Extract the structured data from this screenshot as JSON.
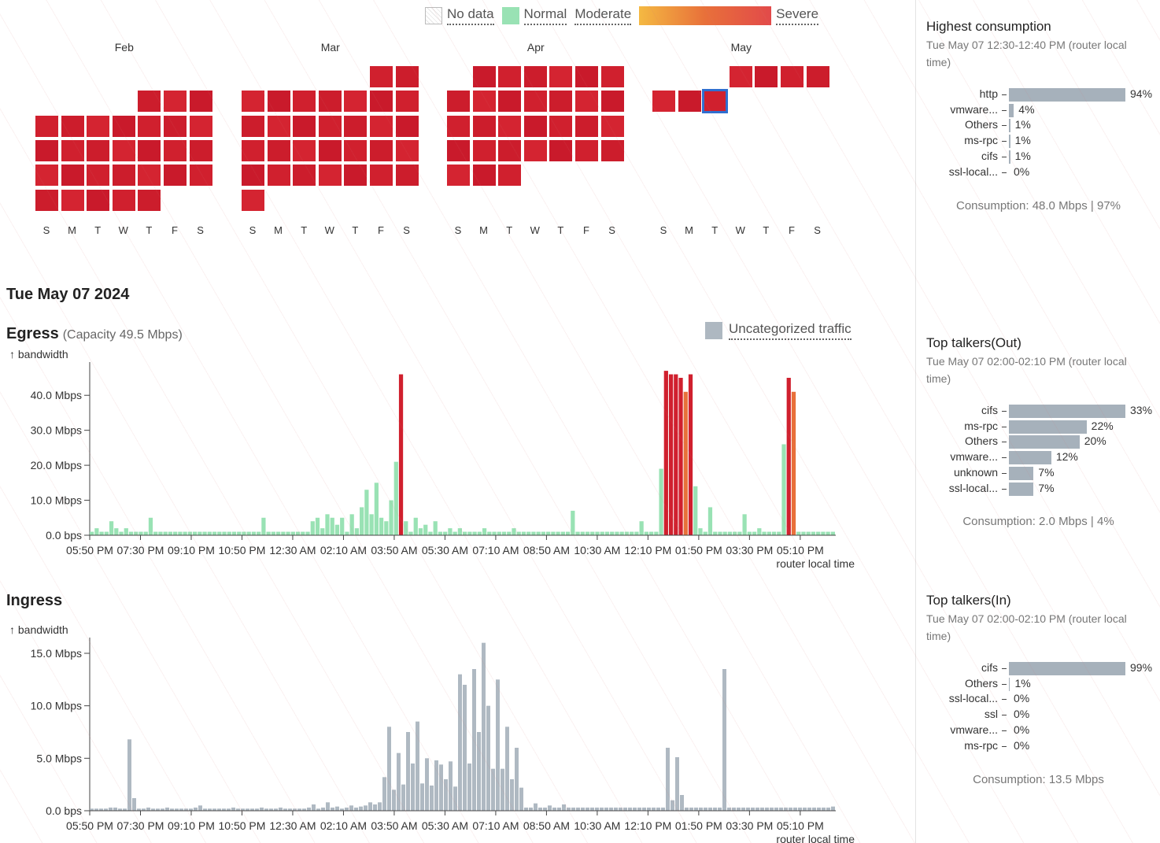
{
  "legend": {
    "no_data": "No data",
    "normal": "Normal",
    "moderate": "Moderate",
    "severe": "Severe",
    "colors": {
      "normal": "#99e2b4",
      "moderate": "#f4b942",
      "severe": "#e24a4a"
    }
  },
  "calendar": {
    "months": [
      {
        "label": "Feb",
        "dow": [
          "S",
          "M",
          "T",
          "W",
          "T",
          "F",
          "S"
        ]
      },
      {
        "label": "Mar",
        "dow": [
          "S",
          "M",
          "T",
          "W",
          "T",
          "F",
          "S"
        ]
      },
      {
        "label": "Apr",
        "dow": [
          "S",
          "M",
          "T",
          "W",
          "T",
          "F",
          "S"
        ]
      },
      {
        "label": "May",
        "dow": [
          "S",
          "M",
          "T",
          "W",
          "T",
          "F",
          "S"
        ]
      }
    ],
    "cell_color": "#d0202e",
    "selected_color": "#2f6fd0"
  },
  "selected_date": "Tue May 07 2024",
  "egress": {
    "title": "Egress",
    "subtitle": "(Capacity 49.5 Mbps)",
    "ylabel": "↑ bandwidth",
    "legend_label": "Uncategorized traffic"
  },
  "ingress": {
    "title": "Ingress",
    "ylabel": "↑ bandwidth"
  },
  "chart_data": [
    {
      "type": "bar",
      "name": "egress",
      "xlabel": "router local time",
      "ylim": [
        0,
        49.5
      ],
      "yticks": [
        "0.0 bps",
        "10.0 Mbps",
        "20.0 Mbps",
        "30.0 Mbps",
        "40.0 Mbps"
      ],
      "ytick_values": [
        0,
        10,
        20,
        30,
        40
      ],
      "xticks": [
        "05:50 PM",
        "07:30 PM",
        "09:10 PM",
        "10:50 PM",
        "12:30 AM",
        "02:10 AM",
        "03:50 AM",
        "05:30 AM",
        "07:10 AM",
        "08:50 AM",
        "10:30 AM",
        "12:10 PM",
        "01:50 PM",
        "03:30 PM",
        "05:10 PM"
      ],
      "values": [
        1,
        2,
        1,
        1,
        4,
        2,
        1,
        2,
        1,
        1,
        1,
        1,
        5,
        1,
        1,
        1,
        1,
        1,
        1,
        1,
        1,
        1,
        1,
        1,
        1,
        1,
        1,
        1,
        1,
        1,
        1,
        1,
        1,
        1,
        1,
        5,
        1,
        1,
        1,
        1,
        1,
        1,
        1,
        1,
        1,
        4,
        5,
        2,
        6,
        5,
        3,
        5,
        1,
        6,
        2,
        8,
        13,
        6,
        15,
        5,
        4,
        10,
        21,
        46,
        4,
        1,
        5,
        2,
        3,
        1,
        4,
        1,
        1,
        2,
        1,
        2,
        1,
        1,
        1,
        1,
        2,
        1,
        1,
        1,
        1,
        1,
        2,
        1,
        1,
        1,
        1,
        1,
        1,
        1,
        1,
        1,
        1,
        1,
        7,
        1,
        1,
        1,
        1,
        1,
        1,
        1,
        1,
        1,
        1,
        1,
        1,
        1,
        4,
        1,
        1,
        1,
        19,
        47,
        46,
        46,
        45,
        41,
        46,
        14,
        2,
        1,
        8,
        1,
        1,
        1,
        1,
        1,
        1,
        6,
        1,
        1,
        2,
        1,
        1,
        1,
        1,
        26,
        45,
        41,
        1,
        1,
        1,
        1,
        1,
        1,
        1,
        1
      ],
      "severity": [
        0,
        0,
        0,
        0,
        0,
        0,
        0,
        0,
        0,
        0,
        0,
        0,
        0,
        0,
        0,
        0,
        0,
        0,
        0,
        0,
        0,
        0,
        0,
        0,
        0,
        0,
        0,
        0,
        0,
        0,
        0,
        0,
        0,
        0,
        0,
        0,
        0,
        0,
        0,
        0,
        0,
        0,
        0,
        0,
        0,
        0,
        0,
        0,
        0,
        0,
        0,
        0,
        0,
        0,
        0,
        0,
        0,
        0,
        0,
        0,
        0,
        0,
        0,
        2,
        0,
        0,
        0,
        0,
        0,
        0,
        0,
        0,
        0,
        0,
        0,
        0,
        0,
        0,
        0,
        0,
        0,
        0,
        0,
        0,
        0,
        0,
        0,
        0,
        0,
        0,
        0,
        0,
        0,
        0,
        0,
        0,
        0,
        0,
        0,
        0,
        0,
        0,
        0,
        0,
        0,
        0,
        0,
        0,
        0,
        0,
        0,
        0,
        0,
        0,
        0,
        0,
        0,
        2,
        2,
        2,
        2,
        1,
        2,
        0,
        0,
        0,
        0,
        0,
        0,
        0,
        0,
        0,
        0,
        0,
        0,
        0,
        0,
        0,
        0,
        0,
        0,
        0,
        2,
        1,
        0,
        0,
        0,
        0,
        0,
        0,
        0,
        0
      ]
    },
    {
      "type": "bar",
      "name": "ingress",
      "xlabel": "router local time",
      "ylim": [
        0,
        16.5
      ],
      "yticks": [
        "0.0 bps",
        "5.0 Mbps",
        "10.0 Mbps",
        "15.0 Mbps"
      ],
      "ytick_values": [
        0,
        5,
        10,
        15
      ],
      "xticks": [
        "05:50 PM",
        "07:30 PM",
        "09:10 PM",
        "10:50 PM",
        "12:30 AM",
        "02:10 AM",
        "03:50 AM",
        "05:30 AM",
        "07:10 AM",
        "08:50 AM",
        "10:30 AM",
        "12:10 PM",
        "01:50 PM",
        "03:30 PM",
        "05:10 PM"
      ],
      "values": [
        0.2,
        0.2,
        0.2,
        0.2,
        0.3,
        0.3,
        0.2,
        0.2,
        6.8,
        1.2,
        0.2,
        0.2,
        0.3,
        0.2,
        0.2,
        0.2,
        0.3,
        0.2,
        0.2,
        0.2,
        0.2,
        0.2,
        0.3,
        0.5,
        0.2,
        0.2,
        0.2,
        0.2,
        0.2,
        0.2,
        0.3,
        0.2,
        0.2,
        0.2,
        0.2,
        0.2,
        0.3,
        0.2,
        0.2,
        0.2,
        0.3,
        0.2,
        0.2,
        0.2,
        0.2,
        0.2,
        0.3,
        0.6,
        0.2,
        0.3,
        0.8,
        0.3,
        0.4,
        0.2,
        0.3,
        0.5,
        0.3,
        0.4,
        0.5,
        0.8,
        0.6,
        0.8,
        3.2,
        8,
        2,
        5.5,
        2.5,
        7.5,
        4.5,
        8.5,
        2.6,
        5,
        2.4,
        4.8,
        4.4,
        3,
        4.7,
        2.3,
        13,
        12,
        4.5,
        13.5,
        7.5,
        16,
        10,
        4,
        12.5,
        4,
        8,
        3,
        6,
        2.2,
        0.3,
        0.3,
        0.7,
        0.3,
        0.3,
        0.5,
        0.3,
        0.3,
        0.6,
        0.3,
        0.3,
        0.3,
        0.3,
        0.3,
        0.3,
        0.3,
        0.3,
        0.3,
        0.3,
        0.3,
        0.3,
        0.3,
        0.3,
        0.3,
        0.3,
        0.3,
        0.3,
        0.3,
        0.3,
        0.3,
        6,
        1,
        5.1,
        1.5,
        0.3,
        0.3,
        0.3,
        0.3,
        0.3,
        0.3,
        0.3,
        0.3,
        13.5,
        0.3,
        0.3,
        0.3,
        0.3,
        0.3,
        0.3,
        0.3,
        0.3,
        0.3,
        0.3,
        0.3,
        0.3,
        0.3,
        0.3,
        0.3,
        0.3,
        0.3,
        0.3,
        0.3,
        0.3,
        0.3,
        0.3,
        0.4
      ]
    }
  ],
  "panels": [
    {
      "title": "Highest consumption",
      "subtitle": "Tue May 07 12:30-12:40 PM (router local time)",
      "items": [
        {
          "name": "http",
          "pct": 94,
          "label": "94%"
        },
        {
          "name": "vmware...",
          "pct": 4,
          "label": "4%"
        },
        {
          "name": "Others",
          "pct": 1,
          "label": "1%"
        },
        {
          "name": "ms-rpc",
          "pct": 1,
          "label": "1%"
        },
        {
          "name": "cifs",
          "pct": 1,
          "label": "1%"
        },
        {
          "name": "ssl-local...",
          "pct": 0,
          "label": "0%"
        }
      ],
      "consumption": "Consumption: 48.0 Mbps | 97%"
    },
    {
      "title": "Top talkers(Out)",
      "subtitle": "Tue May 07 02:00-02:10 PM (router local time)",
      "items": [
        {
          "name": "cifs",
          "pct": 33,
          "label": "33%"
        },
        {
          "name": "ms-rpc",
          "pct": 22,
          "label": "22%"
        },
        {
          "name": "Others",
          "pct": 20,
          "label": "20%"
        },
        {
          "name": "vmware...",
          "pct": 12,
          "label": "12%"
        },
        {
          "name": "unknown",
          "pct": 7,
          "label": "7%"
        },
        {
          "name": "ssl-local...",
          "pct": 7,
          "label": "7%"
        }
      ],
      "consumption": "Consumption: 2.0 Mbps | 4%"
    },
    {
      "title": "Top talkers(In)",
      "subtitle": "Tue May 07 02:00-02:10 PM (router local time)",
      "items": [
        {
          "name": "cifs",
          "pct": 99,
          "label": "99%"
        },
        {
          "name": "Others",
          "pct": 1,
          "label": "1%"
        },
        {
          "name": "ssl-local...",
          "pct": 0,
          "label": "0%"
        },
        {
          "name": "ssl",
          "pct": 0,
          "label": "0%"
        },
        {
          "name": "vmware...",
          "pct": 0,
          "label": "0%"
        },
        {
          "name": "ms-rpc",
          "pct": 0,
          "label": "0%"
        }
      ],
      "consumption": "Consumption: 13.5 Mbps"
    }
  ]
}
